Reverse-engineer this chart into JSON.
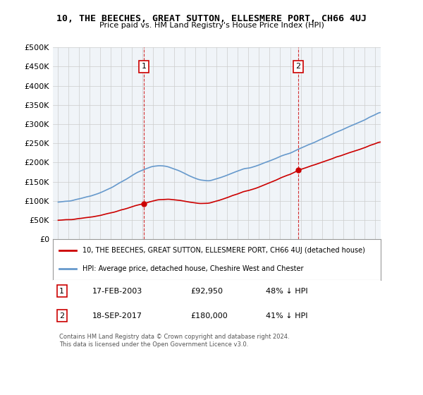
{
  "title": "10, THE BEECHES, GREAT SUTTON, ELLESMERE PORT, CH66 4UJ",
  "subtitle": "Price paid vs. HM Land Registry's House Price Index (HPI)",
  "red_label": "10, THE BEECHES, GREAT SUTTON, ELLESMERE PORT, CH66 4UJ (detached house)",
  "blue_label": "HPI: Average price, detached house, Cheshire West and Chester",
  "transaction1_date": "17-FEB-2003",
  "transaction1_price": 92950,
  "transaction1_hpi": "48% ↓ HPI",
  "transaction2_date": "18-SEP-2017",
  "transaction2_price": 180000,
  "transaction2_hpi": "41% ↓ HPI",
  "footer": "Contains HM Land Registry data © Crown copyright and database right 2024.\nThis data is licensed under the Open Government Licence v3.0.",
  "ylim": [
    0,
    500000
  ],
  "yticks": [
    0,
    50000,
    100000,
    150000,
    200000,
    250000,
    300000,
    350000,
    400000,
    450000,
    500000
  ],
  "ytick_labels": [
    "£0",
    "£50K",
    "£100K",
    "£150K",
    "£200K",
    "£250K",
    "£300K",
    "£350K",
    "£400K",
    "£450K",
    "£500K"
  ],
  "xstart_year": 1995,
  "xend_year": 2025,
  "red_color": "#cc0000",
  "blue_color": "#6699cc",
  "dashed_color": "#cc0000",
  "background_color": "#ffffff",
  "grid_color": "#cccccc"
}
